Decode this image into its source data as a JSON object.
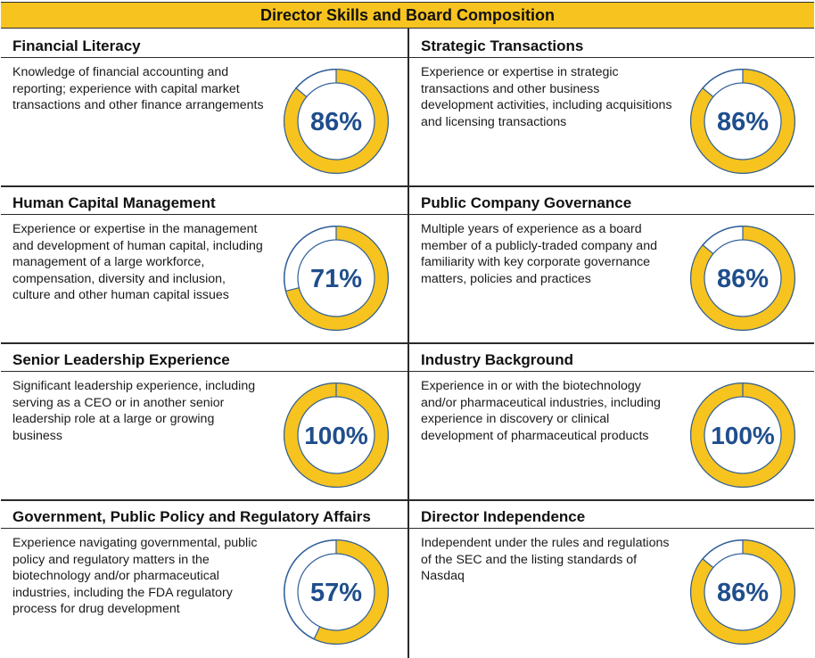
{
  "header": {
    "title": "Director Skills and Board Composition"
  },
  "chart_data": {
    "type": "pie",
    "title": "Director Skills and Board Composition",
    "colors": {
      "fill": "#f7c31f",
      "remainder": "#ffffff",
      "ring_border": "#2f5f99",
      "value_text": "#1f4e8c"
    },
    "items": [
      {
        "name": "Financial Literacy",
        "description": "Knowledge of financial accounting and reporting; experience with capital market transactions and other finance arrangements",
        "value": 86,
        "label": "86%"
      },
      {
        "name": "Strategic Transactions",
        "description": "Experience or expertise in strategic transactions and other business development activities, including acquisitions and licensing transactions",
        "value": 86,
        "label": "86%"
      },
      {
        "name": "Human Capital Management",
        "description": "Experience or expertise in the management and development of human capital, including management of a large workforce, compensation, diversity and inclusion, culture and other human capital issues",
        "value": 71,
        "label": "71%"
      },
      {
        "name": "Public Company Governance",
        "description": "Multiple years of experience as a board member of a publicly-traded company and familiarity with key corporate governance matters, policies and practices",
        "value": 86,
        "label": "86%"
      },
      {
        "name": "Senior Leadership Experience",
        "description": "Significant leadership experience, including serving as a CEO or in another senior leadership role at a large or growing business",
        "value": 100,
        "label": "100%"
      },
      {
        "name": "Industry Background",
        "description": "Experience in or with the biotechnology and/or pharmaceutical industries, including experience in discovery or clinical development of pharmaceutical products",
        "value": 100,
        "label": "100%"
      },
      {
        "name": "Government, Public Policy and Regulatory Affairs",
        "description": "Experience navigating governmental, public policy and regulatory matters in the biotechnology and/or pharmaceutical industries, including the FDA regulatory process for drug development",
        "value": 57,
        "label": "57%"
      },
      {
        "name": "Director Independence",
        "description": "Independent under the rules and regulations of the SEC and the listing standards of Nasdaq",
        "value": 86,
        "label": "86%"
      }
    ]
  }
}
